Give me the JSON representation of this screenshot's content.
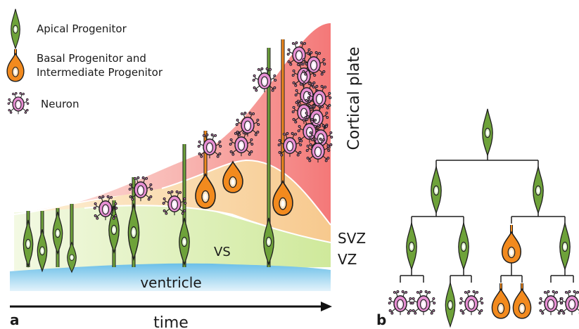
{
  "legend": {
    "apical": "Apical Progenitor",
    "basal_line1": "Basal Progenitor and",
    "basal_line2": "Intermediate Progenitor",
    "neuron": "Neuron"
  },
  "zones": {
    "cortical_plate": "Cortical plate",
    "svz": "SVZ",
    "vz": "VZ",
    "vs": "VS",
    "ventricle": "ventricle"
  },
  "axis": {
    "time": "time"
  },
  "panels": {
    "a": "a",
    "b": "b"
  },
  "colors": {
    "apical_fill": "#6ea23a",
    "apical_nucleus": "#d7edc2",
    "basal_fill": "#f28a1e",
    "basal_nucleus": "#fde2bf",
    "neuron_fill": "#e78fd3",
    "neuron_nucleus": "#fbe3f6",
    "ventricle": "#79c6ee",
    "cortical_plate": "#f58a8a",
    "svz": "#f8d9a2",
    "vz": "#dbf0b6"
  }
}
